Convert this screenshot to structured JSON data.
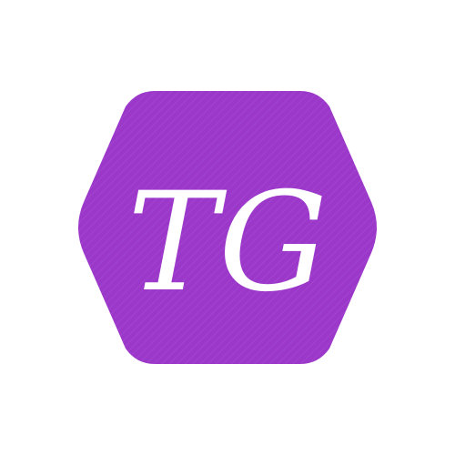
{
  "logo": {
    "monogram": "TG",
    "colors": {
      "badge": "#9b37c9",
      "badge_texture": "#a244d0",
      "letters": "#ffffff",
      "background": "#ffffff"
    }
  }
}
